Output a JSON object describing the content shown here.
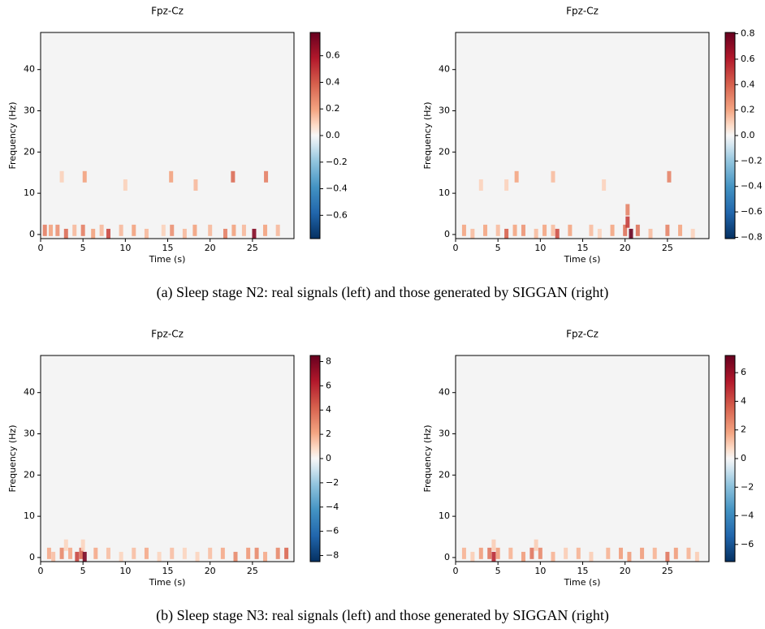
{
  "chart_data": [
    {
      "type": "heatmap",
      "title": "Fpz-Cz",
      "xlabel": "Time (s)",
      "ylabel": "Frequency (Hz)",
      "cmap": "RdBu_r",
      "xlim": [
        0,
        29.9
      ],
      "ylim": [
        -1,
        49
      ],
      "xticks": [
        0,
        5,
        10,
        15,
        20,
        25
      ],
      "yticks": [
        0,
        10,
        20,
        30,
        40
      ],
      "clim": [
        -0.775,
        0.775
      ],
      "cticks": [
        {
          "value": -0.6,
          "label": "−0.6"
        },
        {
          "value": -0.4,
          "label": "−0.4"
        },
        {
          "value": -0.2,
          "label": "−0.2"
        },
        {
          "value": 0,
          "label": "0.0"
        },
        0.2,
        0.4,
        0.6
      ],
      "x": [
        0.5,
        1.2,
        2.0,
        3.0,
        4.0,
        5.0,
        6.2,
        7.2,
        8.0,
        9.5,
        11.0,
        12.5,
        14.5,
        15.5,
        17.0,
        18.2,
        20.0,
        21.8,
        22.8,
        24.0,
        25.2,
        26.5,
        28.0,
        5.2,
        15.4,
        18.3,
        22.7,
        26.6,
        2.5,
        10.0
      ],
      "y": [
        1,
        1,
        1,
        0,
        1,
        1,
        0,
        1,
        0,
        1,
        1,
        0,
        1,
        1,
        0,
        1,
        1,
        0,
        1,
        1,
        0,
        1,
        1,
        14,
        14,
        12,
        14,
        14,
        14,
        12
      ],
      "values": [
        0.3,
        0.2,
        0.25,
        0.35,
        0.15,
        0.3,
        0.2,
        0.15,
        0.45,
        0.15,
        0.2,
        0.15,
        0.1,
        0.25,
        0.15,
        0.2,
        0.15,
        0.3,
        0.2,
        0.15,
        0.7,
        0.2,
        0.15,
        0.2,
        0.2,
        0.15,
        0.35,
        0.3,
        0.1,
        0.1
      ]
    },
    {
      "type": "heatmap",
      "title": "Fpz-Cz",
      "xlabel": "Time (s)",
      "ylabel": "Frequency (Hz)",
      "cmap": "RdBu_r",
      "xlim": [
        0,
        29.9
      ],
      "ylim": [
        -1,
        49
      ],
      "xticks": [
        0,
        5,
        10,
        15,
        20,
        25
      ],
      "yticks": [
        0,
        10,
        20,
        30,
        40
      ],
      "clim": [
        -0.81,
        0.81
      ],
      "cticks": [
        {
          "value": -0.8,
          "label": "−0.8"
        },
        {
          "value": -0.6,
          "label": "−0.6"
        },
        {
          "value": -0.4,
          "label": "−0.4"
        },
        {
          "value": -0.2,
          "label": "−0.2"
        },
        {
          "value": 0,
          "label": "0.0"
        },
        0.2,
        0.4,
        0.6,
        0.8
      ],
      "x": [
        1.0,
        2.0,
        3.5,
        5.0,
        6.0,
        7.0,
        8.0,
        9.5,
        10.5,
        11.5,
        12.0,
        13.5,
        16.0,
        17.0,
        18.5,
        20.0,
        20.3,
        20.7,
        21.5,
        23.0,
        25.0,
        26.5,
        28.0,
        7.2,
        11.5,
        25.2,
        6.0,
        17.5,
        20.3,
        3.0
      ],
      "y": [
        1,
        0,
        1,
        1,
        0,
        1,
        1,
        0,
        1,
        1,
        0,
        1,
        1,
        0,
        1,
        1,
        3,
        0,
        1,
        0,
        1,
        1,
        0,
        14,
        14,
        14,
        12,
        12,
        6,
        12
      ],
      "values": [
        0.2,
        0.15,
        0.2,
        0.15,
        0.4,
        0.2,
        0.25,
        0.15,
        0.2,
        0.15,
        0.45,
        0.2,
        0.15,
        0.1,
        0.2,
        0.35,
        0.5,
        0.8,
        0.35,
        0.15,
        0.3,
        0.2,
        0.1,
        0.2,
        0.15,
        0.3,
        0.1,
        0.1,
        0.3,
        0.1
      ]
    },
    {
      "type": "heatmap",
      "title": "Fpz-Cz",
      "xlabel": "Time (s)",
      "ylabel": "Frequency (Hz)",
      "cmap": "RdBu_r",
      "xlim": [
        0,
        29.9
      ],
      "ylim": [
        -1,
        49
      ],
      "xticks": [
        0,
        5,
        10,
        15,
        20,
        25
      ],
      "yticks": [
        0,
        10,
        20,
        30,
        40
      ],
      "clim": [
        -8.5,
        8.5
      ],
      "cticks": [
        {
          "value": -8,
          "label": "−8"
        },
        {
          "value": -6,
          "label": "−6"
        },
        {
          "value": -4,
          "label": "−4"
        },
        {
          "value": -2,
          "label": "−2"
        },
        0,
        2,
        4,
        6,
        8
      ],
      "x": [
        1.0,
        1.5,
        2.5,
        3.5,
        4.3,
        4.8,
        5.2,
        6.5,
        8.0,
        9.5,
        11.0,
        12.5,
        14.0,
        15.5,
        17.0,
        18.5,
        20.0,
        21.5,
        23.0,
        24.5,
        25.5,
        26.5,
        28.0,
        29.0,
        3.0,
        5.0
      ],
      "y": [
        1,
        0,
        1,
        1,
        0,
        1,
        0,
        1,
        1,
        0,
        1,
        1,
        0,
        1,
        1,
        0,
        1,
        1,
        0,
        1,
        1,
        0,
        1,
        1,
        3,
        3
      ],
      "values": [
        2,
        1.5,
        3,
        2,
        5,
        4,
        8,
        2,
        1.5,
        1,
        1.5,
        2,
        1,
        1.5,
        1,
        1,
        1.5,
        2,
        3,
        2.5,
        3,
        2,
        3,
        4,
        1,
        1
      ]
    },
    {
      "type": "heatmap",
      "title": "Fpz-Cz",
      "xlabel": "Time (s)",
      "ylabel": "Frequency (Hz)",
      "cmap": "RdBu_r",
      "xlim": [
        0,
        29.9
      ],
      "ylim": [
        -1,
        49
      ],
      "xticks": [
        0,
        5,
        10,
        15,
        20,
        25
      ],
      "yticks": [
        0,
        10,
        20,
        30,
        40
      ],
      "clim": [
        -7.2,
        7.2
      ],
      "cticks": [
        {
          "value": -6,
          "label": "−6"
        },
        {
          "value": -4,
          "label": "−4"
        },
        {
          "value": -2,
          "label": "−2"
        },
        0,
        2,
        4,
        6
      ],
      "x": [
        1.0,
        2.0,
        3.0,
        4.0,
        4.5,
        5.0,
        6.5,
        8.0,
        9.0,
        10.0,
        11.5,
        13.0,
        14.5,
        16.0,
        18.0,
        19.5,
        20.5,
        22.0,
        23.5,
        25.0,
        26.0,
        27.5,
        28.5,
        4.5,
        9.5
      ],
      "y": [
        1,
        0,
        1,
        1,
        0,
        1,
        1,
        0,
        1,
        1,
        0,
        1,
        1,
        0,
        1,
        1,
        0,
        1,
        1,
        0,
        1,
        1,
        0,
        3,
        3
      ],
      "values": [
        1.5,
        1,
        2,
        3,
        5,
        2,
        1.5,
        2,
        3,
        2.5,
        1.5,
        1,
        1.5,
        1,
        1.5,
        2,
        2,
        2,
        1.5,
        3,
        2,
        1.5,
        1,
        1,
        1
      ]
    }
  ],
  "captions": [
    "(a)  Sleep stage N2: real signals (left) and those generated by SIGGAN (right)",
    "(b)  Sleep stage N3: real signals (left) and those generated by SIGGAN (right)"
  ]
}
